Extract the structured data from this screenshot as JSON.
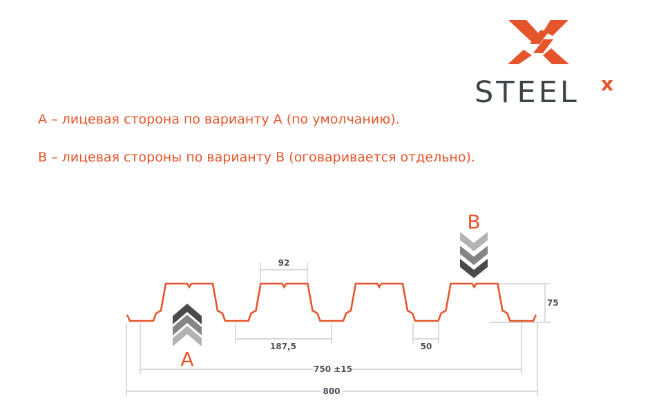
{
  "logo": {
    "text": "STEEL",
    "superscript": "x",
    "brand_color": "#e5552b",
    "text_color": "#3d4449"
  },
  "notes": [
    "A – лицевая сторона по варианту А (по умолчанию).",
    "B – лицевая стороны по варианту В (оговаривается отдельно)."
  ],
  "diagram": {
    "profile_color": "#e5552b",
    "dimension_color": "#bdbdbd",
    "side_a_label": "A",
    "side_b_label": "B",
    "dimensions": {
      "top_width": "92",
      "pitch": "187,5",
      "bottom_width": "50",
      "height": "75",
      "useful_width": "750 ±15",
      "total_width": "800"
    }
  }
}
